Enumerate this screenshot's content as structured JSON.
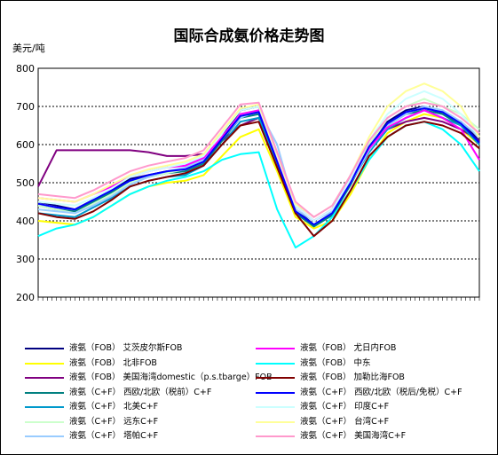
{
  "chart_data": {
    "type": "line",
    "title": "国际合成氨价格走势图",
    "ylabel": "美元/吨",
    "xlabel": "",
    "ylim": [
      200,
      800
    ],
    "yticks": [
      200,
      300,
      400,
      500,
      600,
      700,
      800
    ],
    "grid": true,
    "legend": "bottom",
    "x": [
      0,
      1,
      2,
      3,
      4,
      5,
      6,
      7,
      8,
      9,
      10,
      11,
      12,
      13,
      14,
      15,
      16,
      17,
      18,
      19,
      20,
      21,
      22,
      23,
      24
    ],
    "series": [
      {
        "name": "液氨（FOB） 艾茨皮尔斯FOB",
        "color": "#000080",
        "values": [
          450,
          440,
          430,
          455,
          480,
          510,
          520,
          530,
          535,
          560,
          620,
          690,
          700,
          560,
          430,
          390,
          420,
          500,
          590,
          660,
          690,
          700,
          680,
          660,
          610
        ]
      },
      {
        "name": "液氨（FOB） 北非FOB",
        "color": "#ffff00",
        "values": [
          400,
          395,
          390,
          410,
          440,
          470,
          490,
          500,
          505,
          520,
          570,
          620,
          640,
          530,
          410,
          380,
          400,
          470,
          560,
          630,
          660,
          680,
          670,
          640,
          600
        ]
      },
      {
        "name": "液氨（FOB） 美国海湾domestic（p.s.tbarge）FOB",
        "color": "#800080",
        "values": [
          490,
          585,
          585,
          585,
          585,
          585,
          580,
          570,
          570,
          575,
          610,
          650,
          670,
          550,
          440,
          400,
          430,
          520,
          600,
          640,
          660,
          670,
          660,
          640,
          610
        ]
      },
      {
        "name": "液氨（C+F） 西欧/北欧（税前）C+F",
        "color": "#008080",
        "values": [
          440,
          430,
          425,
          450,
          475,
          500,
          515,
          525,
          530,
          550,
          610,
          670,
          680,
          550,
          420,
          385,
          415,
          495,
          590,
          650,
          680,
          690,
          680,
          650,
          600
        ]
      },
      {
        "name": "液氨（C+F） 北美C+F",
        "color": "#0099cc",
        "values": [
          420,
          415,
          410,
          435,
          460,
          490,
          505,
          515,
          520,
          545,
          600,
          660,
          670,
          545,
          425,
          390,
          420,
          500,
          580,
          640,
          670,
          690,
          670,
          650,
          600
        ]
      },
      {
        "name": "液氨（C+F） 远东C+F",
        "color": "#ccffcc",
        "values": [
          440,
          430,
          420,
          445,
          470,
          500,
          515,
          525,
          535,
          560,
          620,
          680,
          690,
          560,
          440,
          400,
          430,
          505,
          600,
          670,
          700,
          720,
          700,
          680,
          640
        ]
      },
      {
        "name": "液氨（C+F） 塔帕C+F",
        "color": "#99ccff",
        "values": [
          430,
          425,
          420,
          440,
          465,
          495,
          515,
          530,
          540,
          560,
          615,
          670,
          690,
          600,
          430,
          400,
          425,
          500,
          585,
          650,
          680,
          700,
          690,
          660,
          620
        ]
      },
      {
        "name": "液氨（FOB） 尤日内FOB",
        "color": "#ff00ff",
        "values": [
          460,
          455,
          450,
          470,
          490,
          515,
          530,
          540,
          545,
          565,
          620,
          680,
          690,
          560,
          440,
          400,
          430,
          510,
          590,
          645,
          670,
          690,
          670,
          640,
          560
        ]
      },
      {
        "name": "液氨（FOB） 中东",
        "color": "#00ffff",
        "values": [
          360,
          380,
          390,
          410,
          440,
          470,
          490,
          505,
          515,
          530,
          560,
          575,
          580,
          430,
          330,
          360,
          410,
          480,
          560,
          620,
          650,
          660,
          640,
          600,
          530
        ]
      },
      {
        "name": "液氨（FOB） 加勒比海FOB",
        "color": "#800000",
        "values": [
          420,
          410,
          405,
          425,
          455,
          490,
          505,
          515,
          525,
          545,
          600,
          650,
          660,
          540,
          420,
          360,
          400,
          480,
          570,
          620,
          650,
          660,
          650,
          630,
          590
        ]
      },
      {
        "name": "液氨（C+F） 西欧/北欧（税后/免税）C+F",
        "color": "#0000ff",
        "values": [
          445,
          435,
          430,
          455,
          480,
          505,
          520,
          530,
          535,
          555,
          615,
          675,
          685,
          555,
          425,
          390,
          420,
          500,
          595,
          655,
          685,
          695,
          685,
          655,
          605
        ]
      },
      {
        "name": "液氨（C+F） 印度C+F",
        "color": "#ccffff",
        "values": [
          450,
          445,
          440,
          460,
          485,
          515,
          530,
          540,
          550,
          570,
          630,
          690,
          700,
          570,
          440,
          400,
          430,
          510,
          610,
          680,
          720,
          740,
          720,
          680,
          620
        ]
      },
      {
        "name": "液氨（C+F） 台湾C+F",
        "color": "#ffff99",
        "values": [
          460,
          455,
          450,
          470,
          495,
          520,
          535,
          545,
          555,
          575,
          635,
          695,
          705,
          575,
          445,
          410,
          440,
          520,
          620,
          700,
          740,
          760,
          740,
          700,
          620
        ]
      },
      {
        "name": "液氨（C+F） 美国海湾C+F",
        "color": "#ff99cc",
        "values": [
          470,
          465,
          460,
          480,
          505,
          530,
          545,
          555,
          565,
          585,
          645,
          705,
          710,
          580,
          450,
          410,
          440,
          520,
          610,
          670,
          700,
          710,
          700,
          670,
          630
        ]
      }
    ]
  }
}
